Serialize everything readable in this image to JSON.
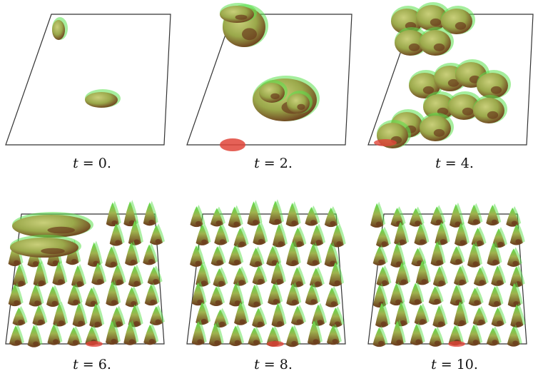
{
  "figure": {
    "panels": [
      {
        "variable": "t",
        "value": "0.",
        "label": "t = 0.",
        "stage": 0
      },
      {
        "variable": "t",
        "value": "2.",
        "label": "t = 2.",
        "stage": 1
      },
      {
        "variable": "t",
        "value": "4.",
        "label": "t = 4.",
        "stage": 2
      },
      {
        "variable": "t",
        "value": "6.",
        "label": "t = 6.",
        "stage": 3
      },
      {
        "variable": "t",
        "value": "8.",
        "label": "t = 8.",
        "stage": 4
      },
      {
        "variable": "t",
        "value": "10.",
        "label": "t = 10.",
        "stage": 5
      }
    ],
    "colors": {
      "frame": "#333333",
      "blob_fill": "#9aa84a",
      "blob_dark": "#6b3a1c",
      "blob_highlight": "#5be04c",
      "blob_red": "#e0453a"
    }
  }
}
